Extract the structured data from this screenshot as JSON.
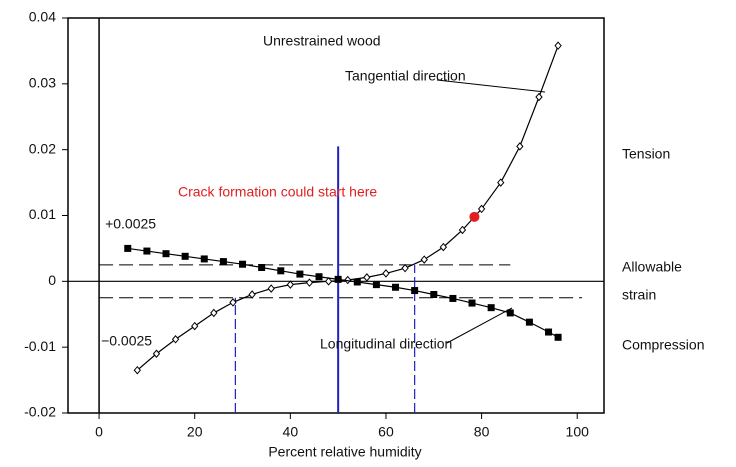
{
  "chart_data": {
    "type": "line",
    "xlabel": "Percent relative humidity",
    "xlim": [
      -6.5,
      105.6
    ],
    "ylim": [
      -0.02,
      0.04
    ],
    "xticks": [
      0,
      20,
      40,
      60,
      80,
      100
    ],
    "yticks": [
      -0.02,
      -0.01,
      0,
      0.01,
      0.02,
      0.03,
      0.04
    ],
    "series": [
      {
        "name": "Tangential direction",
        "color": "#000000",
        "marker": "diamond",
        "x": [
          8,
          12,
          16,
          20,
          24,
          28,
          32,
          36,
          40,
          44,
          48,
          52,
          56,
          60,
          64,
          68,
          72,
          76,
          80,
          84,
          88,
          92,
          96
        ],
        "values": [
          -0.0135,
          -0.011,
          -0.0088,
          -0.0068,
          -0.0048,
          -0.0032,
          -0.002,
          -0.0011,
          -0.0005,
          -0.0002,
          0,
          0.0002,
          0.0006,
          0.0012,
          0.002,
          0.0033,
          0.0052,
          0.0078,
          0.011,
          0.015,
          0.0205,
          0.028,
          0.0358
        ]
      },
      {
        "name": "Longitudinal direction",
        "color": "#000000",
        "marker": "square",
        "x": [
          6,
          10,
          14,
          18,
          22,
          26,
          30,
          34,
          38,
          42,
          46,
          50,
          54,
          58,
          62,
          66,
          70,
          74,
          78,
          82,
          86,
          90,
          94,
          96
        ],
        "values": [
          0.005,
          0.0046,
          0.0042,
          0.0038,
          0.0034,
          0.003,
          0.0026,
          0.0021,
          0.0016,
          0.0011,
          0.0007,
          0.0003,
          -0.0001,
          -0.0005,
          -0.0009,
          -0.0014,
          -0.002,
          -0.0026,
          -0.0033,
          -0.004,
          -0.0048,
          -0.0062,
          -0.0077,
          -0.0085
        ]
      }
    ],
    "crack_point": {
      "x": 78.5,
      "y": 0.0098,
      "color": "#e02020",
      "label": "Crack formation could start here"
    },
    "hlines": [
      {
        "value": 0.0025,
        "label": "+0.0025",
        "xrange": [
          0,
          86
        ]
      },
      {
        "value": -0.0025,
        "label": "−0.0025",
        "xrange": [
          0,
          101
        ]
      }
    ],
    "vlines": [
      {
        "value": 50,
        "yrange": [
          -0.02,
          0.0205
        ],
        "color": "#2020c0",
        "dashed": false
      },
      {
        "value": 28.5,
        "yrange": [
          -0.02,
          -0.0025
        ],
        "color": "#2020c0",
        "dashed": true
      },
      {
        "value": 66,
        "yrange": [
          -0.02,
          0.0025
        ],
        "color": "#2020c0",
        "dashed": true
      }
    ],
    "annotations": [
      "Unrestrained wood",
      "Tension",
      "Allowable",
      "strain",
      "Compression"
    ]
  }
}
